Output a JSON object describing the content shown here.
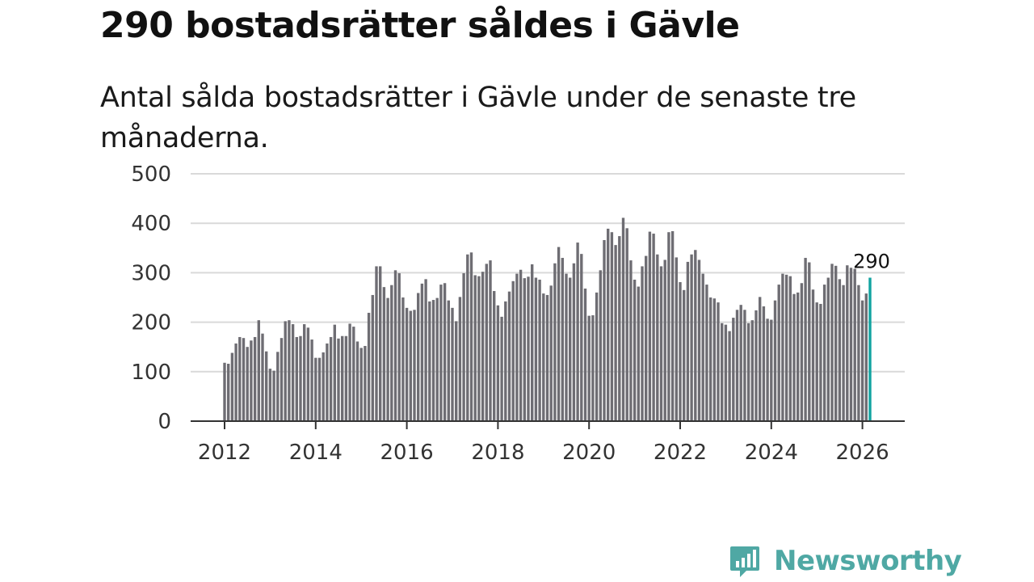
{
  "header": {
    "title": "290 bostadsrätter såldes i Gävle",
    "subtitle": "Antal sålda bostadsrätter i Gävle under de senaste tre månaderna."
  },
  "brand": {
    "name": "Newsworthy",
    "icon": "bar-chart-speech-bubble-icon",
    "color": "#4fa8a4"
  },
  "chart_data": {
    "type": "bar",
    "title": "290 bostadsrätter såldes i Gävle",
    "subtitle": "Antal sålda bostadsrätter i Gävle under de senaste tre månaderna.",
    "xlabel": "",
    "ylabel": "",
    "ylim": [
      0,
      500
    ],
    "y_ticks": [
      0,
      100,
      200,
      300,
      400,
      500
    ],
    "x_tick_labels": [
      "2012",
      "2014",
      "2016",
      "2018",
      "2020",
      "2022",
      "2024",
      "2026"
    ],
    "grid": true,
    "start": "2012-01",
    "frequency": "monthly",
    "bar_color": "#6e6d73",
    "highlight_color": "#11a3a0",
    "highlight_index": 170,
    "annotation": {
      "label": "290",
      "value": 290,
      "index": 170
    },
    "values": [
      118,
      116,
      138,
      157,
      170,
      168,
      150,
      163,
      170,
      204,
      177,
      141,
      106,
      102,
      140,
      168,
      202,
      204,
      196,
      170,
      172,
      196,
      189,
      165,
      128,
      128,
      139,
      157,
      170,
      195,
      167,
      172,
      172,
      197,
      191,
      161,
      148,
      152,
      219,
      255,
      313,
      313,
      271,
      249,
      275,
      305,
      299,
      250,
      229,
      223,
      225,
      259,
      278,
      287,
      242,
      245,
      249,
      276,
      279,
      244,
      229,
      202,
      251,
      299,
      337,
      341,
      295,
      293,
      302,
      318,
      325,
      263,
      234,
      211,
      242,
      262,
      283,
      298,
      306,
      289,
      292,
      317,
      290,
      286,
      258,
      255,
      274,
      319,
      352,
      330,
      298,
      290,
      319,
      361,
      338,
      268,
      213,
      214,
      260,
      305,
      366,
      389,
      382,
      356,
      374,
      411,
      390,
      325,
      286,
      272,
      313,
      334,
      383,
      379,
      337,
      313,
      326,
      382,
      384,
      331,
      281,
      265,
      322,
      337,
      346,
      326,
      298,
      276,
      250,
      248,
      240,
      198,
      195,
      182,
      209,
      225,
      235,
      225,
      198,
      204,
      224,
      251,
      232,
      207,
      205,
      244,
      276,
      298,
      296,
      293,
      257,
      260,
      279,
      330,
      321,
      266,
      240,
      237,
      276,
      290,
      318,
      314,
      287,
      275,
      315,
      310,
      308,
      275,
      244,
      258,
      290
    ]
  }
}
